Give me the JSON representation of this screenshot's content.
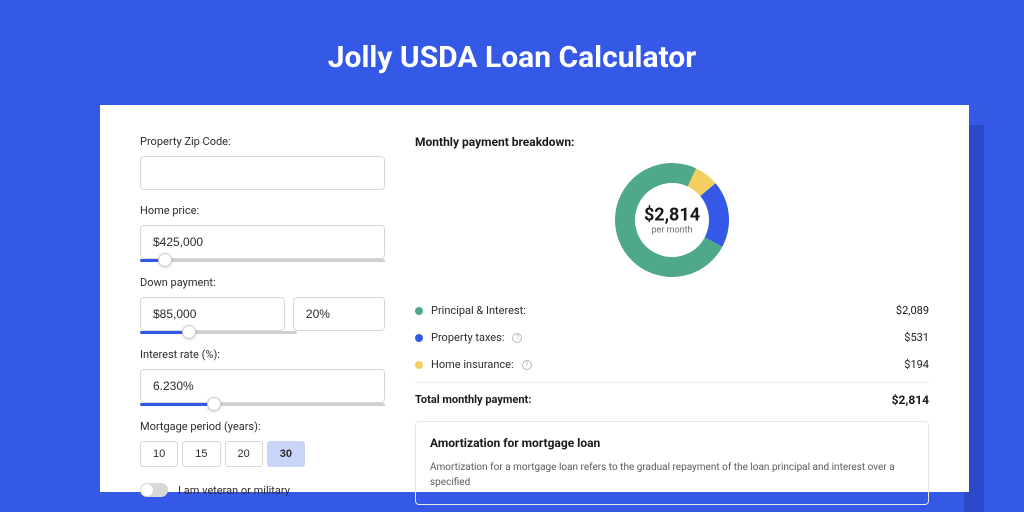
{
  "colors": {
    "bg": "#3459e6",
    "shadow": "#2a4ac9",
    "card": "#ffffff",
    "border": "#d8d8d8",
    "text": "#2c2c2c",
    "muted": "#6b6b6b"
  },
  "title": "Jolly USDA Loan Calculator",
  "form": {
    "zip": {
      "label": "Property Zip Code:",
      "value": ""
    },
    "homePrice": {
      "label": "Home price:",
      "value": "$425,000",
      "sliderPct": 10
    },
    "downPayment": {
      "label": "Down payment:",
      "value": "$85,000",
      "pct": "20%",
      "sliderPct": 20
    },
    "interest": {
      "label": "Interest rate (%):",
      "value": "6.230%",
      "sliderPct": 30
    },
    "period": {
      "label": "Mortgage period (years):",
      "options": [
        "10",
        "15",
        "20",
        "30"
      ],
      "selected": "30"
    },
    "veteran": {
      "label": "I am veteran or military",
      "checked": false
    }
  },
  "breakdown": {
    "title": "Monthly payment breakdown:",
    "center": {
      "amount": "$2,814",
      "sub": "per month"
    },
    "donut": {
      "size": 114,
      "thickness": 20,
      "segments": [
        {
          "key": "pi",
          "label": "Principal & Interest:",
          "value": "$2,089",
          "pct": 74.2,
          "color": "#4fa888"
        },
        {
          "key": "tax",
          "label": "Property taxes:",
          "value": "$531",
          "pct": 18.9,
          "color": "#3459e6",
          "info": true
        },
        {
          "key": "ins",
          "label": "Home insurance:",
          "value": "$194",
          "pct": 6.9,
          "color": "#f3cf62",
          "info": true
        }
      ]
    },
    "total": {
      "label": "Total monthly payment:",
      "value": "$2,814"
    }
  },
  "amortization": {
    "title": "Amortization for mortgage loan",
    "text": "Amortization for a mortgage loan refers to the gradual repayment of the loan principal and interest over a specified"
  }
}
